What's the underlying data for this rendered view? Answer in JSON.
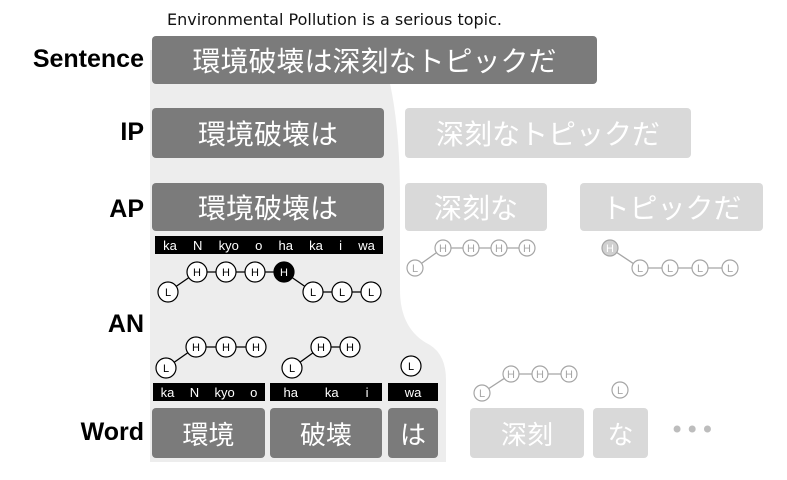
{
  "caption": "Environmental Pollution is a serious topic.",
  "labels": {
    "sentence": "Sentence",
    "ip": "IP",
    "ap": "AP",
    "an": "AN",
    "word": "Word"
  },
  "sentence": "環境破壊は深刻なトピックだ",
  "ip": [
    "環境破壊は",
    "深刻なトピックだ"
  ],
  "ap": [
    "環境破壊は",
    "深刻な",
    "トピックだ"
  ],
  "words": [
    "環境",
    "破壊",
    "は",
    "深刻",
    "な"
  ],
  "ellipsis": "•••",
  "ap_phonemes": [
    "ka",
    "N",
    "kyo",
    "o",
    "ha",
    "ka",
    "i",
    "wa"
  ],
  "word_phonemes": [
    [
      "ka",
      "N",
      "kyo",
      "o"
    ],
    [
      "ha",
      "ka",
      "i"
    ],
    [
      "wa"
    ]
  ],
  "tones": {
    "ap1": [
      "L",
      "H",
      "H",
      "H",
      "H",
      "L",
      "L",
      "L"
    ],
    "ap2": [
      "L",
      "H",
      "H",
      "H",
      "H"
    ],
    "ap3": [
      "H",
      "L",
      "L",
      "L",
      "L"
    ],
    "word1": [
      "L",
      "H",
      "H",
      "H"
    ],
    "word2": [
      "L",
      "H",
      "H"
    ],
    "word3": [
      "L"
    ],
    "word4": [
      "L",
      "H",
      "H",
      "H"
    ],
    "word5": [
      "L"
    ]
  },
  "colors": {
    "dark_box": "#7b7b7b",
    "light_box": "#d9d9d9",
    "focus_panel": "#ededed",
    "accent_tone": "#000000"
  }
}
